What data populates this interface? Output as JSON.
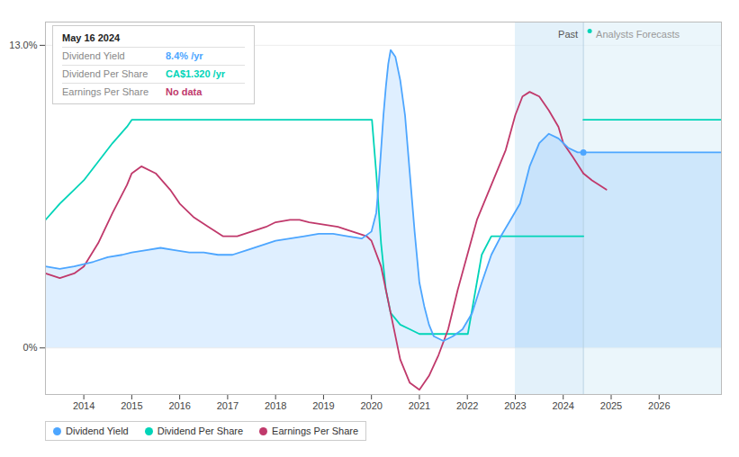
{
  "chart_data": {
    "type": "line",
    "xlim": [
      2013.2,
      2027.3
    ],
    "xticks": [
      2014,
      2015,
      2016,
      2017,
      2018,
      2019,
      2020,
      2021,
      2022,
      2023,
      2024,
      2025,
      2026
    ],
    "ylim": [
      -2.0,
      14.0
    ],
    "yticks": [
      {
        "value": 0.0,
        "label": "0%"
      },
      {
        "value": 13.0,
        "label": "13.0%"
      }
    ],
    "grid": true,
    "legend": "lower left",
    "regions": [
      {
        "x": [
          2023.0,
          2024.42
        ],
        "label": "Past",
        "color": "#cce5f5"
      },
      {
        "x": [
          2024.42,
          2027.3
        ],
        "label": "Analysts Forecasts",
        "color": "#daeef8"
      }
    ],
    "tooltip": {
      "title": "May 16 2024",
      "rows": [
        {
          "label": "Dividend Yield",
          "value": "8.4% /yr"
        },
        {
          "label": "Dividend Per Share",
          "value": "CA$1.320 /yr"
        },
        {
          "label": "Earnings Per Share",
          "value": "No data"
        }
      ]
    },
    "series": [
      {
        "name": "Dividend Yield",
        "color": "#4da6ff",
        "type": "area",
        "x": [
          2013.2,
          2013.5,
          2013.8,
          2014.0,
          2014.2,
          2014.5,
          2014.8,
          2015.0,
          2015.3,
          2015.6,
          2015.9,
          2016.2,
          2016.5,
          2016.8,
          2017.1,
          2017.4,
          2017.7,
          2018.0,
          2018.3,
          2018.6,
          2018.9,
          2019.2,
          2019.5,
          2019.8,
          2020.0,
          2020.1,
          2020.15,
          2020.2,
          2020.25,
          2020.3,
          2020.35,
          2020.4,
          2020.5,
          2020.6,
          2020.7,
          2020.8,
          2020.9,
          2021.0,
          2021.1,
          2021.2,
          2021.3,
          2021.5,
          2021.7,
          2021.9,
          2022.1,
          2022.3,
          2022.5,
          2022.7,
          2022.9,
          2023.1,
          2023.3,
          2023.5,
          2023.7,
          2023.9,
          2024.1,
          2024.3,
          2024.42
        ],
        "values": [
          3.5,
          3.4,
          3.5,
          3.6,
          3.7,
          3.9,
          4.0,
          4.1,
          4.2,
          4.3,
          4.2,
          4.1,
          4.1,
          4.0,
          4.0,
          4.2,
          4.4,
          4.6,
          4.7,
          4.8,
          4.9,
          4.9,
          4.8,
          4.7,
          5.0,
          5.8,
          7.0,
          8.5,
          10.0,
          11.2,
          12.2,
          12.8,
          12.5,
          11.5,
          10.0,
          7.5,
          5.0,
          2.8,
          1.8,
          1.0,
          0.5,
          0.3,
          0.5,
          0.8,
          1.5,
          2.8,
          4.0,
          4.8,
          5.5,
          6.2,
          7.8,
          8.8,
          9.2,
          9.0,
          8.6,
          8.4,
          8.4
        ],
        "forecast_x": [
          2024.42,
          2024.7,
          2025.0,
          2025.5,
          2026.0,
          2026.5,
          2027.0,
          2027.3
        ],
        "forecast_values": [
          8.4,
          8.4,
          8.4,
          8.4,
          8.4,
          8.4,
          8.4,
          8.4
        ]
      },
      {
        "name": "Dividend Per Share",
        "color": "#00d4b8",
        "type": "line",
        "x": [
          2013.2,
          2013.5,
          2013.8,
          2014.0,
          2014.3,
          2014.6,
          2014.9,
          2015.0,
          2015.1,
          2015.4,
          2015.7,
          2015.9,
          2016.0,
          2016.5,
          2017.0,
          2017.5,
          2017.8,
          2018.0,
          2018.01,
          2019.0,
          2019.5,
          2019.9,
          2020.0,
          2020.01,
          2020.1,
          2020.2,
          2020.3,
          2020.4,
          2020.6,
          2020.8,
          2021.0,
          2021.01,
          2021.1,
          2021.5,
          2021.9,
          2022.0,
          2022.01,
          2022.3,
          2022.5,
          2023.0,
          2023.5,
          2024.0,
          2024.42
        ],
        "values": [
          5.5,
          6.2,
          6.8,
          7.2,
          8.0,
          8.8,
          9.5,
          9.8,
          9.8,
          9.8,
          9.8,
          9.8,
          9.8,
          9.8,
          9.8,
          9.8,
          9.8,
          9.8,
          9.8,
          9.8,
          9.8,
          9.8,
          9.8,
          9.8,
          7.5,
          4.5,
          2.5,
          1.5,
          1.0,
          0.8,
          0.6,
          0.6,
          0.6,
          0.6,
          0.6,
          0.6,
          0.6,
          4.0,
          4.8,
          4.8,
          4.8,
          4.8,
          4.8
        ],
        "forecast_x": [
          2024.42,
          2024.7,
          2025.0,
          2025.5,
          2026.0,
          2026.5,
          2027.0,
          2027.3
        ],
        "forecast_values": [
          9.8,
          9.8,
          9.8,
          9.8,
          9.8,
          9.8,
          9.8,
          9.8
        ]
      },
      {
        "name": "Earnings Per Share",
        "color": "#c0396b",
        "type": "line",
        "x": [
          2013.2,
          2013.5,
          2013.8,
          2014.0,
          2014.3,
          2014.6,
          2014.9,
          2015.0,
          2015.2,
          2015.5,
          2015.8,
          2016.0,
          2016.3,
          2016.6,
          2016.9,
          2017.2,
          2017.5,
          2017.8,
          2018.0,
          2018.3,
          2018.5,
          2018.7,
          2019.0,
          2019.3,
          2019.6,
          2019.9,
          2020.0,
          2020.2,
          2020.4,
          2020.6,
          2020.8,
          2021.0,
          2021.2,
          2021.4,
          2021.6,
          2021.8,
          2022.0,
          2022.2,
          2022.5,
          2022.8,
          2023.0,
          2023.15,
          2023.3,
          2023.5,
          2023.7,
          2023.9,
          2024.0,
          2024.2,
          2024.42
        ],
        "values": [
          3.2,
          3.0,
          3.2,
          3.5,
          4.5,
          5.8,
          7.0,
          7.5,
          7.8,
          7.5,
          6.8,
          6.2,
          5.6,
          5.2,
          4.8,
          4.8,
          5.0,
          5.2,
          5.4,
          5.5,
          5.5,
          5.4,
          5.3,
          5.2,
          5.0,
          4.8,
          4.6,
          3.5,
          1.5,
          -0.5,
          -1.5,
          -1.8,
          -1.2,
          -0.3,
          0.8,
          2.5,
          4.0,
          5.5,
          7.0,
          8.5,
          10.0,
          10.8,
          11.0,
          10.8,
          10.2,
          9.5,
          8.8,
          8.2,
          7.5
        ],
        "forecast_x": [
          2024.42,
          2024.6,
          2024.9
        ],
        "forecast_values": [
          7.5,
          7.2,
          6.8
        ]
      }
    ]
  }
}
